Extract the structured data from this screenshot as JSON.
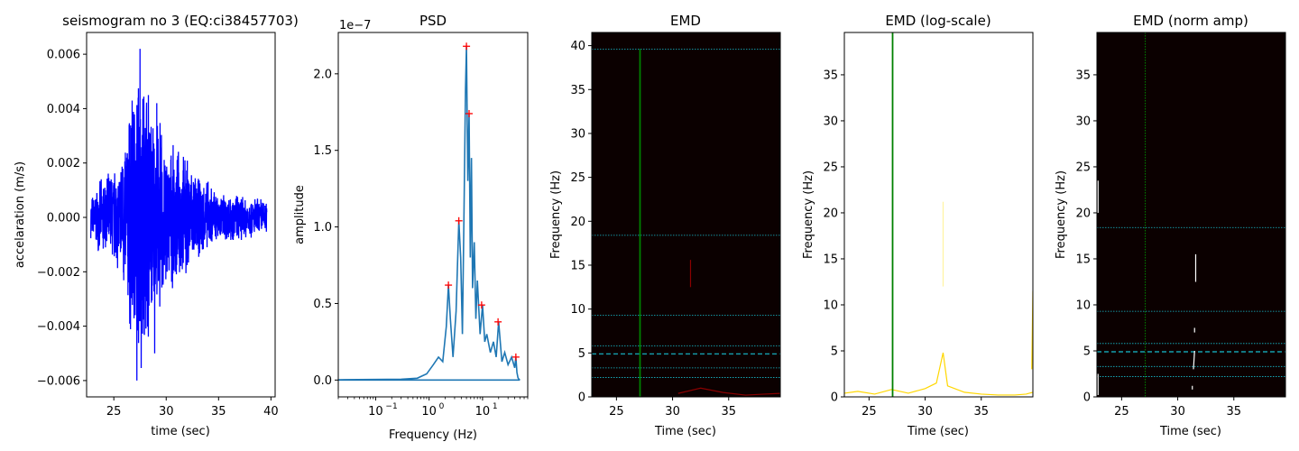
{
  "figure": {
    "colors": {
      "seismogram_line": "#0000ff",
      "psd_line": "#1f77b4",
      "peak_marker": "#ff0000",
      "spectrogram_bg": "#0b0000",
      "threshold_line": "#008000",
      "grid_line": "#17becf",
      "log_trace": "#ffd700",
      "norm_trace": "#ffffff"
    }
  },
  "chart_data": [
    {
      "id": "seis",
      "type": "line",
      "title": "seismogram no 3 (EQ:ci38457703)",
      "xlabel": "time (sec)",
      "ylabel": "accelaration (m/s)",
      "xlim": [
        22.4,
        40.4
      ],
      "ylim": [
        -0.0066,
        0.0068
      ],
      "xticks": [
        25,
        30,
        35,
        40
      ],
      "xtick_labels": [
        "25",
        "30",
        "35",
        "40"
      ],
      "yticks": [
        -0.006,
        -0.004,
        -0.002,
        0.0,
        0.002,
        0.004,
        0.006
      ],
      "ytick_labels": [
        "−0.006",
        "−0.004",
        "−0.002",
        "0.000",
        "0.002",
        "0.004",
        "0.006"
      ],
      "envelope": {
        "x": [
          22.8,
          23.5,
          24.5,
          25.5,
          26.5,
          27.0,
          27.5,
          28.0,
          28.5,
          29.0,
          29.5,
          30.0,
          31.0,
          32.0,
          33.0,
          34.0,
          35.0,
          36.0,
          37.0,
          38.0,
          39.0,
          39.6
        ],
        "amp": [
          0.0008,
          0.0013,
          0.0018,
          0.0021,
          0.0045,
          0.0055,
          0.0062,
          0.0058,
          0.0048,
          0.0038,
          0.004,
          0.0028,
          0.0026,
          0.0024,
          0.0016,
          0.0014,
          0.001,
          0.001,
          0.0009,
          0.0008,
          0.0008,
          0.0006
        ]
      },
      "peaks": {
        "x": [
          27.2,
          27.5,
          28.3,
          28.9,
          29.1
        ],
        "y": [
          -0.006,
          0.0062,
          0.0045,
          -0.005,
          0.0042
        ]
      }
    },
    {
      "id": "psd",
      "type": "line",
      "title": "PSD",
      "xlabel": "Frequency (Hz)",
      "ylabel": "amplitude",
      "xscale": "log",
      "xlim": [
        0.02,
        70
      ],
      "ylim": [
        -1.1e-08,
        2.27e-07
      ],
      "offset_text": "1e−7",
      "xticks": [
        0.1,
        1,
        10
      ],
      "xtick_labels": [
        "10",
        "10",
        "10"
      ],
      "xtick_exponents": [
        "−1",
        "0",
        "1"
      ],
      "yticks": [
        0,
        5e-08,
        1e-07,
        1.5e-07,
        2e-07
      ],
      "ytick_labels": [
        "0.0",
        "0.5",
        "1.0",
        "1.5",
        "2.0"
      ],
      "x": [
        0.02,
        0.3,
        0.6,
        0.9,
        1.2,
        1.5,
        1.8,
        2.1,
        2.3,
        2.5,
        2.8,
        3.2,
        3.6,
        3.9,
        4.2,
        4.5,
        4.8,
        5.0,
        5.3,
        5.6,
        5.9,
        6.2,
        6.5,
        7.0,
        7.5,
        8.0,
        9.0,
        10.0,
        11.0,
        12.0,
        14.0,
        16.0,
        18.0,
        20.0,
        23.0,
        26.0,
        30.0,
        35.0,
        40.0,
        42.0,
        44.0,
        46.0,
        48.0,
        50.0
      ],
      "y": [
        2e-10,
        5e-10,
        1.2e-09,
        4e-09,
        1e-08,
        1.5e-08,
        1.2e-08,
        3.5e-08,
        6.2e-08,
        4e-08,
        1.5e-08,
        4.5e-08,
        1.04e-07,
        8e-08,
        3e-08,
        1.1e-07,
        1.9e-07,
        2.18e-07,
        1.3e-07,
        1.74e-07,
        8e-08,
        1.45e-07,
        6e-08,
        9e-08,
        4e-08,
        6.5e-08,
        3e-08,
        4.9e-08,
        2.5e-08,
        3e-08,
        1.8e-08,
        2.5e-08,
        1.5e-08,
        3.8e-08,
        1.2e-08,
        1.8e-08,
        1e-08,
        1.5e-08,
        8e-09,
        1.5e-08,
        5e-09,
        1.5e-09,
        5e-10,
        2e-10
      ],
      "peaks_x": [
        2.3,
        3.6,
        5.0,
        5.6,
        9.6,
        19.5,
        42.0
      ],
      "peaks_y": [
        6.2e-08,
        1.04e-07,
        2.18e-07,
        1.74e-07,
        4.9e-08,
        3.8e-08,
        1.5e-08
      ]
    },
    {
      "id": "emd",
      "type": "heatmap",
      "title": "EMD",
      "xlabel": "Time (sec)",
      "ylabel": "Frequency (Hz)",
      "xlim": [
        22.8,
        39.6
      ],
      "ylim": [
        0,
        41.5
      ],
      "xticks": [
        25,
        30,
        35
      ],
      "xtick_labels": [
        "25",
        "30",
        "35"
      ],
      "yticks": [
        0,
        5,
        10,
        15,
        20,
        25,
        30,
        35,
        40
      ],
      "ytick_labels": [
        "0",
        "5",
        "10",
        "15",
        "20",
        "25",
        "30",
        "35",
        "40"
      ],
      "vline_x": 27.1,
      "vline_ymax": 39.6,
      "hlines_dotted": [
        39.6,
        18.4,
        9.3,
        5.8,
        3.3,
        2.2
      ],
      "hline_dashed": 4.9,
      "traces": [
        {
          "x": [
            31.6,
            31.6
          ],
          "y": [
            12.5,
            15.6
          ],
          "color": "#8b0000"
        },
        {
          "x": [
            30.5,
            32.5,
            34.5,
            36.5,
            38.0,
            39.6
          ],
          "y": [
            0.4,
            1.0,
            0.5,
            0.2,
            0.3,
            0.4
          ],
          "color": "#8b0000"
        }
      ]
    },
    {
      "id": "emdlog",
      "type": "heatmap",
      "title": "EMD (log-scale)",
      "xlabel": "Time (sec)",
      "ylabel": "Frequency (Hz)",
      "xlim": [
        22.8,
        39.6
      ],
      "ylim": [
        0,
        39.6
      ],
      "xticks": [
        25,
        30,
        35
      ],
      "xtick_labels": [
        "25",
        "30",
        "35"
      ],
      "yticks": [
        0,
        5,
        10,
        15,
        20,
        25,
        30,
        35
      ],
      "ytick_labels": [
        "0",
        "5",
        "10",
        "15",
        "20",
        "25",
        "30",
        "35"
      ],
      "vline_x": 27.1,
      "traces": [
        {
          "x": [
            22.8,
            24.0,
            25.5,
            27.0,
            28.5,
            30.0,
            31.0,
            31.6,
            32.0,
            33.5,
            35.0,
            36.5,
            38.0,
            39.0,
            39.6
          ],
          "y": [
            0.4,
            0.6,
            0.3,
            0.8,
            0.4,
            0.9,
            1.5,
            4.8,
            1.2,
            0.5,
            0.3,
            0.2,
            0.2,
            0.3,
            0.5
          ],
          "color": "#ffd700"
        },
        {
          "x": [
            31.6,
            31.6
          ],
          "y": [
            12.0,
            21.2
          ],
          "color": "#fff3a0"
        },
        {
          "x": [
            39.5,
            39.6
          ],
          "y": [
            3.0,
            11.5
          ],
          "color": "#ffd700"
        }
      ]
    },
    {
      "id": "emdnorm",
      "type": "heatmap",
      "title": "EMD (norm amp)",
      "xlabel": "Time (sec)",
      "ylabel": "Frequency (Hz)",
      "xlim": [
        22.8,
        39.6
      ],
      "ylim": [
        0,
        39.6
      ],
      "xticks": [
        25,
        30,
        35
      ],
      "xtick_labels": [
        "25",
        "30",
        "35"
      ],
      "yticks": [
        0,
        5,
        10,
        15,
        20,
        25,
        30,
        35
      ],
      "ytick_labels": [
        "0",
        "5",
        "10",
        "15",
        "20",
        "25",
        "30",
        "35"
      ],
      "vline_x": 27.1,
      "hlines_dotted": [
        18.4,
        9.3,
        5.8,
        3.3,
        2.2
      ],
      "hline_dashed": 4.9,
      "traces": [
        {
          "x": [
            31.6,
            31.6
          ],
          "y": [
            12.5,
            15.5
          ],
          "color": "#ffffff"
        },
        {
          "x": [
            31.5,
            31.5
          ],
          "y": [
            7.0,
            7.5
          ],
          "color": "#ffffff"
        },
        {
          "x": [
            31.4,
            31.5
          ],
          "y": [
            3.0,
            5.0
          ],
          "color": "#ffffff"
        },
        {
          "x": [
            31.3,
            31.3
          ],
          "y": [
            0.8,
            1.2
          ],
          "color": "#ffffff"
        },
        {
          "x": [
            22.9,
            22.9
          ],
          "y": [
            20.0,
            23.5
          ],
          "color": "#ffffff"
        },
        {
          "x": [
            22.9,
            22.9
          ],
          "y": [
            0.2,
            2.5
          ],
          "color": "#ffffff"
        }
      ]
    }
  ]
}
